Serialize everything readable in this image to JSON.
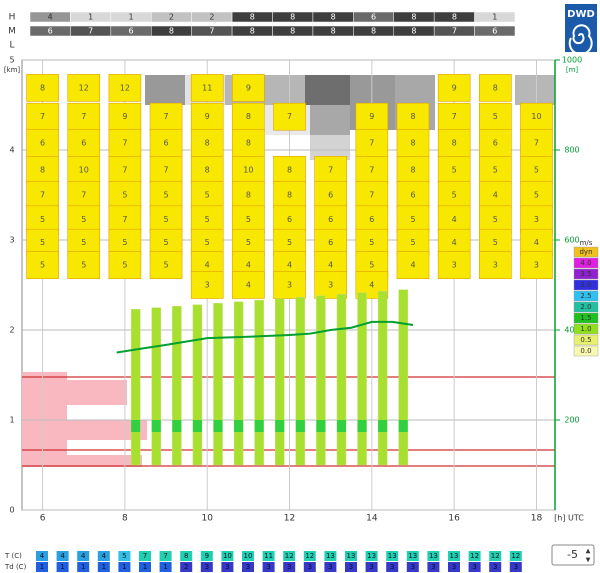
{
  "logo": "DWD",
  "cloud_rows": {
    "labels": [
      "H",
      "M",
      "L"
    ],
    "H": [
      4,
      1,
      1,
      2,
      2,
      8,
      8,
      8,
      6,
      8,
      8,
      1
    ],
    "M": [
      6,
      7,
      6,
      8,
      7,
      8,
      8,
      8,
      8,
      8,
      7,
      6
    ],
    "L": []
  },
  "chart_data": {
    "type": "line",
    "y_unit": "[km]",
    "y2_unit": "[m]",
    "x_label": "[h] UTC",
    "xlim": [
      5.5,
      18.45
    ],
    "xticks": [
      6,
      8,
      10,
      12,
      14,
      16,
      18
    ],
    "ylim": [
      0,
      5
    ],
    "yticks": [
      0,
      1,
      2,
      3,
      4,
      5
    ],
    "y2lim": [
      0,
      1000
    ],
    "y2ticks": [
      200,
      400,
      600,
      800,
      1000
    ],
    "grid": true,
    "series": [
      {
        "color": "#00a030",
        "axis": "y2",
        "x": [
          7.8,
          8.5,
          9,
          10,
          11,
          12,
          12.5,
          13,
          13.5,
          14,
          14.5,
          15
        ],
        "values": [
          350,
          360,
          367,
          382,
          385,
          389,
          392,
          400,
          405,
          418,
          418,
          411
        ]
      }
    ],
    "cells": {
      "levels": [
        4.69,
        4.37,
        4.08,
        3.78,
        3.5,
        3.23,
        2.97,
        2.72,
        2.5
      ],
      "hours": [
        6,
        7,
        8,
        9,
        10,
        11,
        12,
        13,
        14,
        15,
        16,
        17,
        18
      ],
      "values": [
        [
          8,
          7,
          6,
          8,
          7,
          5,
          5,
          5,
          null
        ],
        [
          12,
          7,
          6,
          10,
          7,
          5,
          5,
          5,
          null
        ],
        [
          12,
          9,
          7,
          7,
          5,
          7,
          5,
          5,
          null
        ],
        [
          null,
          7,
          6,
          7,
          5,
          5,
          5,
          5,
          null
        ],
        [
          11,
          9,
          8,
          8,
          5,
          5,
          5,
          4,
          3
        ],
        [
          9,
          8,
          8,
          10,
          8,
          5,
          5,
          4,
          4
        ],
        [
          null,
          7,
          null,
          8,
          8,
          6,
          5,
          4,
          3
        ],
        [
          null,
          null,
          null,
          7,
          6,
          6,
          6,
          4,
          3
        ],
        [
          null,
          9,
          7,
          7,
          7,
          6,
          5,
          5,
          4
        ],
        [
          null,
          8,
          8,
          8,
          6,
          5,
          5,
          4,
          null
        ],
        [
          9,
          7,
          8,
          5,
          5,
          4,
          4,
          3,
          null
        ],
        [
          8,
          5,
          6,
          5,
          4,
          5,
          5,
          3,
          null
        ],
        [
          null,
          10,
          7,
          5,
          5,
          3,
          4,
          3,
          null
        ]
      ]
    },
    "legend": {
      "title": "m/s",
      "labels": [
        "dyn",
        "4.0",
        "3.5",
        "3.0",
        "2.5",
        "2.0",
        "1.5",
        "1.0",
        "0.5",
        "0.0"
      ],
      "colors": [
        "#f0c020",
        "#e020e0",
        "#9020d0",
        "#3030e0",
        "#30c0f0",
        "#20c0a0",
        "#20c020",
        "#90e020",
        "#e8f070",
        "#f8f8b0"
      ]
    }
  },
  "surface": {
    "labels": [
      "T (C)",
      "Td (C)"
    ],
    "T": [
      4,
      4,
      4,
      4,
      5,
      7,
      7,
      8,
      9,
      10,
      10,
      11,
      12,
      12,
      13,
      13,
      13,
      13,
      13,
      13,
      13,
      12,
      12,
      12
    ],
    "Td": [
      1,
      1,
      1,
      1,
      1,
      1,
      1,
      2,
      3,
      3,
      3,
      3,
      3,
      3,
      3,
      3,
      3,
      3,
      3,
      3,
      3,
      3,
      3,
      3
    ]
  },
  "spinner": "-5"
}
